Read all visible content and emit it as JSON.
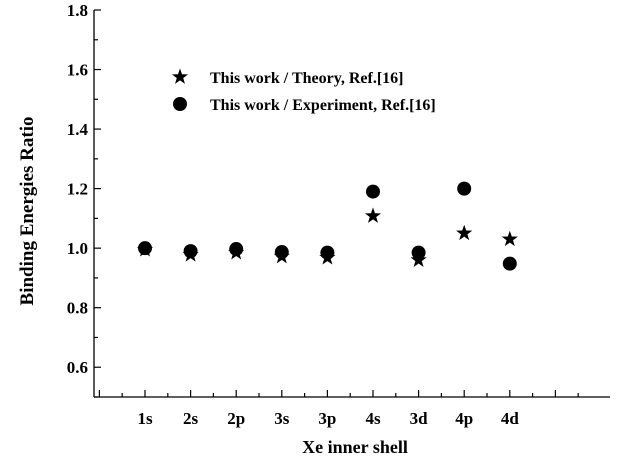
{
  "chart_data": {
    "type": "scatter",
    "title": "",
    "xlabel": "Xe inner shell",
    "ylabel": "Binding Energies Ratio",
    "categories": [
      "1s",
      "2s",
      "2p",
      "3s",
      "3p",
      "4s",
      "3d",
      "4p",
      "4d"
    ],
    "ylim": [
      0.5,
      1.8
    ],
    "yticks": [
      "0.6",
      "0.8",
      "1.0",
      "1.2",
      "1.4",
      "1.6",
      "1.8"
    ],
    "grid": false,
    "legend_position": "top-left",
    "series": [
      {
        "name": "This work / Theory, Ref.[16]",
        "marker": "star",
        "color": "#000000",
        "values": [
          0.995,
          0.978,
          0.985,
          0.972,
          0.968,
          1.108,
          0.96,
          1.05,
          1.03
        ]
      },
      {
        "name": "This work / Experiment, Ref.[16]",
        "marker": "circle",
        "color": "#000000",
        "values": [
          1.0,
          0.99,
          0.997,
          0.987,
          0.985,
          1.19,
          0.985,
          1.2,
          0.948
        ]
      }
    ]
  }
}
